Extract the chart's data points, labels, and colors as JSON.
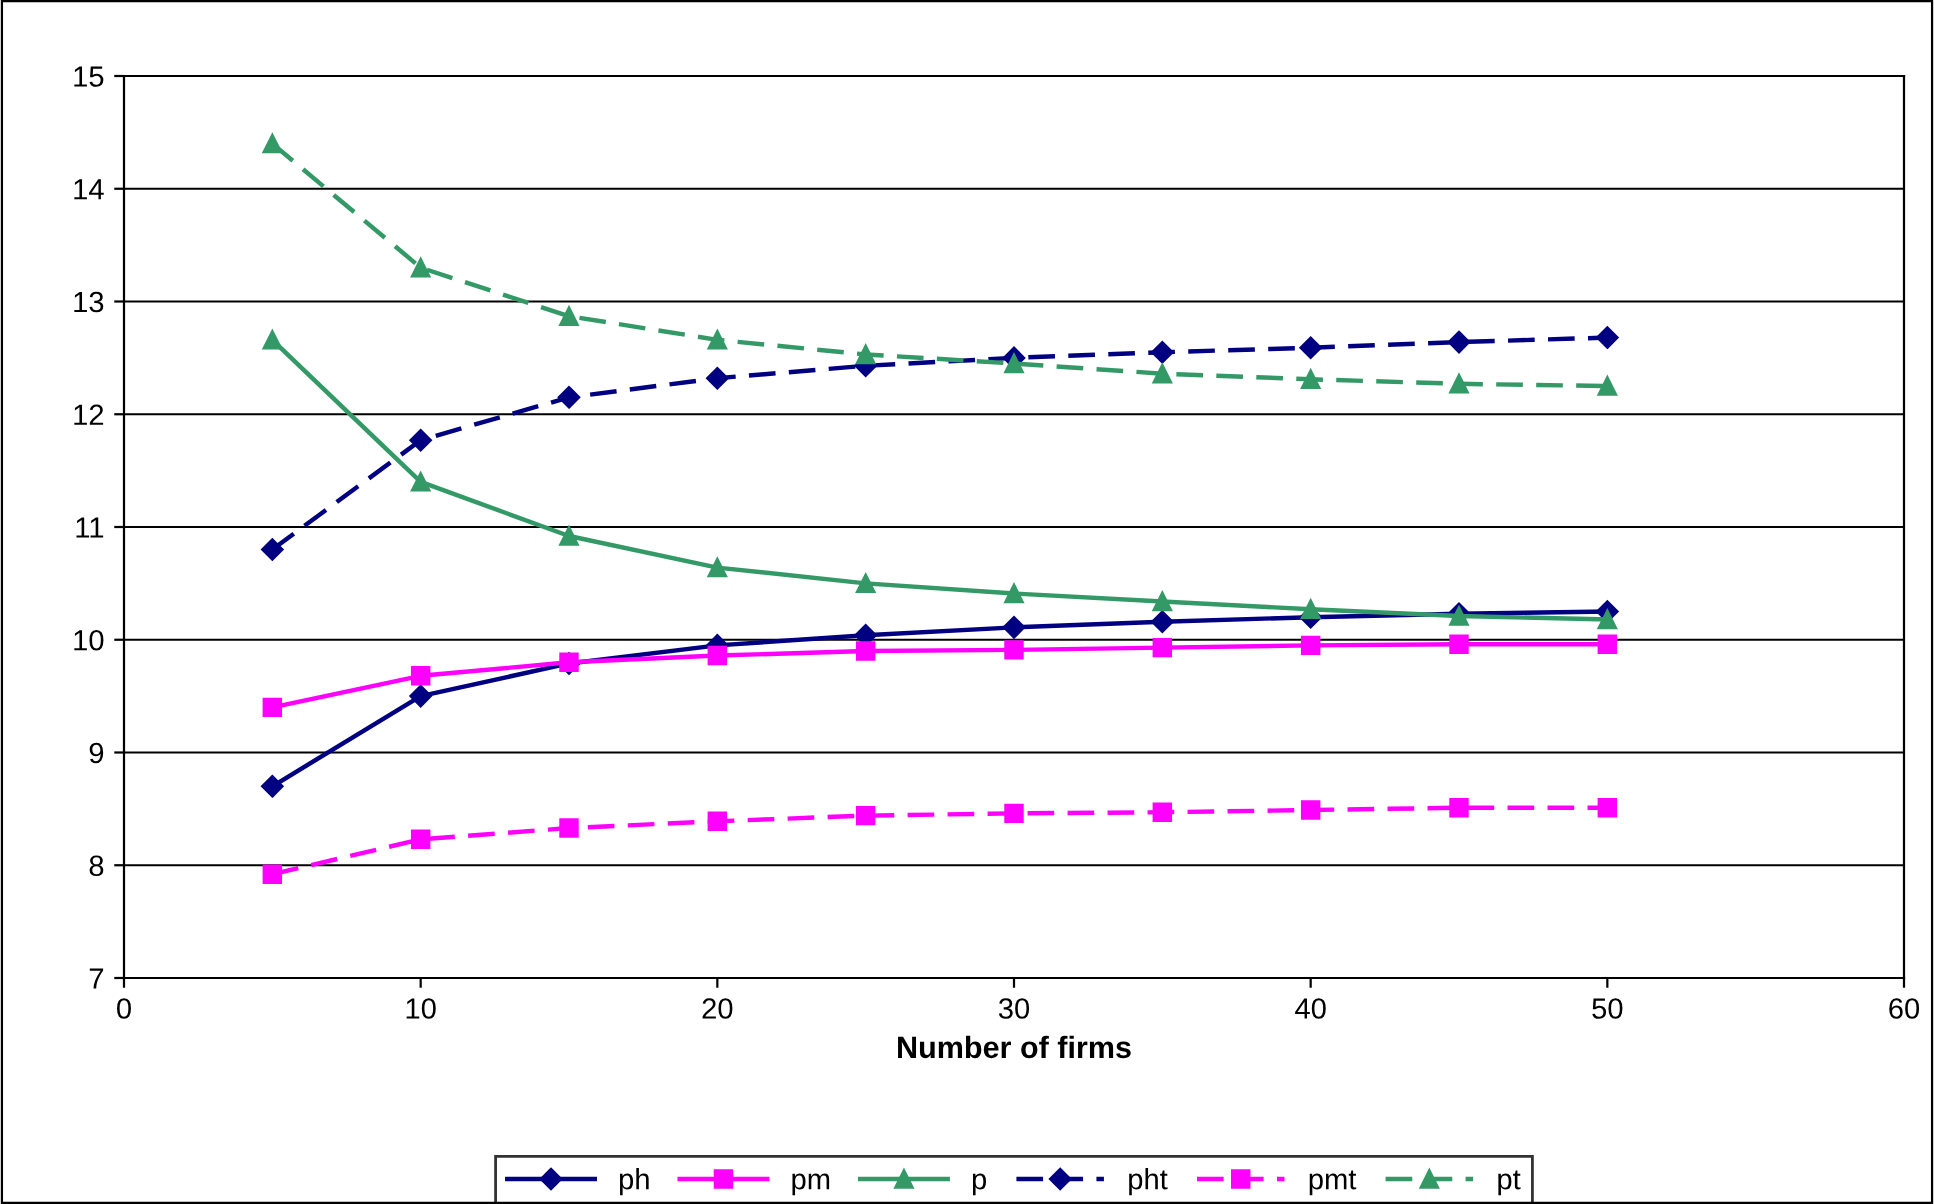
{
  "chart_data": {
    "type": "line",
    "xlabel": "Number of firms",
    "x": [
      5,
      10,
      15,
      20,
      25,
      30,
      35,
      40,
      45,
      50
    ],
    "xlim": [
      0,
      60
    ],
    "xticks": [
      0,
      10,
      20,
      30,
      40,
      50,
      60
    ],
    "ylim": [
      7,
      15
    ],
    "yticks": [
      7,
      8,
      9,
      10,
      11,
      12,
      13,
      14,
      15
    ],
    "grid": "y",
    "legend": "bottom",
    "series": [
      {
        "name": "ph",
        "color": "#000080",
        "marker": "diamond",
        "line_style": "solid",
        "values": [
          8.7,
          9.5,
          9.79,
          9.95,
          10.04,
          10.11,
          10.16,
          10.2,
          10.23,
          10.25
        ]
      },
      {
        "name": "pm",
        "color": "#ff00ff",
        "marker": "square",
        "line_style": "solid",
        "values": [
          9.4,
          9.68,
          9.8,
          9.86,
          9.9,
          9.91,
          9.93,
          9.95,
          9.96,
          9.96
        ]
      },
      {
        "name": "p",
        "color": "#339966",
        "marker": "triangle",
        "line_style": "solid",
        "values": [
          12.66,
          11.4,
          10.92,
          10.64,
          10.5,
          10.41,
          10.34,
          10.27,
          10.21,
          10.18
        ]
      },
      {
        "name": "pht",
        "color": "#000080",
        "marker": "diamond",
        "line_style": "dashed",
        "values": [
          10.8,
          11.77,
          12.15,
          12.32,
          12.43,
          12.5,
          12.55,
          12.59,
          12.64,
          12.68
        ]
      },
      {
        "name": "pmt",
        "color": "#ff00ff",
        "marker": "square",
        "line_style": "dashed",
        "values": [
          7.92,
          8.23,
          8.33,
          8.39,
          8.44,
          8.46,
          8.47,
          8.49,
          8.51,
          8.51
        ]
      },
      {
        "name": "pt",
        "color": "#339966",
        "marker": "triangle",
        "line_style": "dashed",
        "values": [
          14.4,
          13.3,
          12.87,
          12.66,
          12.53,
          12.45,
          12.36,
          12.31,
          12.27,
          12.25
        ]
      }
    ]
  }
}
